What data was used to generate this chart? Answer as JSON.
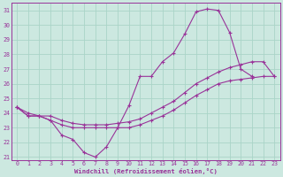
{
  "title": "Windchill (Refroidissement éolien,°C)",
  "background_color": "#cce8e0",
  "grid_color": "#aad4c8",
  "line_color": "#993399",
  "xlim": [
    -0.5,
    23.5
  ],
  "ylim": [
    20.8,
    31.5
  ],
  "yticks": [
    21,
    22,
    23,
    24,
    25,
    26,
    27,
    28,
    29,
    30,
    31
  ],
  "xticks": [
    0,
    1,
    2,
    3,
    4,
    5,
    6,
    7,
    8,
    9,
    10,
    11,
    12,
    13,
    14,
    15,
    16,
    17,
    18,
    19,
    20,
    21,
    22,
    23
  ],
  "series": [
    {
      "x": [
        0,
        1,
        2,
        3,
        4,
        5,
        6,
        7,
        8,
        9,
        10,
        11,
        12,
        13,
        14,
        15,
        16,
        17,
        18,
        19,
        20,
        21
      ],
      "y": [
        24.4,
        23.8,
        23.8,
        23.5,
        22.5,
        22.2,
        21.3,
        21.0,
        21.7,
        23.0,
        24.5,
        26.5,
        26.5,
        27.5,
        28.1,
        29.4,
        30.9,
        31.1,
        31.0,
        29.5,
        27.0,
        26.5
      ]
    },
    {
      "x": [
        0,
        1,
        2,
        3,
        4,
        5,
        6,
        7,
        8,
        9,
        10,
        11,
        12,
        13,
        14,
        15,
        16,
        17,
        18,
        19,
        20,
        21,
        22,
        23
      ],
      "y": [
        24.4,
        24.0,
        23.8,
        23.8,
        23.5,
        23.3,
        23.2,
        23.2,
        23.2,
        23.3,
        23.4,
        23.6,
        24.0,
        24.4,
        24.8,
        25.4,
        26.0,
        26.4,
        26.8,
        27.1,
        27.3,
        27.5,
        27.5,
        26.5
      ]
    },
    {
      "x": [
        0,
        1,
        2,
        3,
        4,
        5,
        6,
        7,
        8,
        9,
        10,
        11,
        12,
        13,
        14,
        15,
        16,
        17,
        18,
        19,
        20,
        21,
        22,
        23
      ],
      "y": [
        24.4,
        23.8,
        23.8,
        23.5,
        23.2,
        23.0,
        23.0,
        23.0,
        23.0,
        23.0,
        23.0,
        23.2,
        23.5,
        23.8,
        24.2,
        24.7,
        25.2,
        25.6,
        26.0,
        26.2,
        26.3,
        26.4,
        26.5,
        26.5
      ]
    }
  ]
}
